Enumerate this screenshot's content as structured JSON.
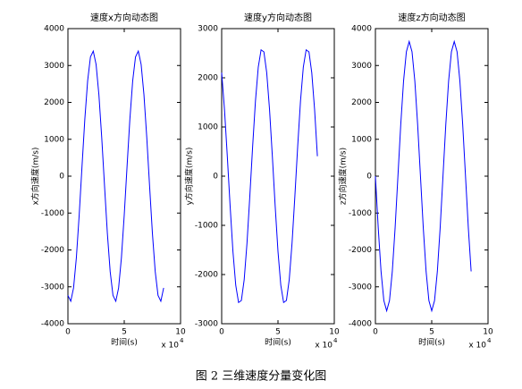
{
  "chart_data": [
    {
      "type": "line",
      "title": "速度x方向动态图",
      "xlabel": "时间(s)",
      "ylabel": "x方向速度(m/s)",
      "x_scale": {
        "base": "x 10",
        "exponent": "4"
      },
      "xlim": [
        0,
        10
      ],
      "xticks": [
        0,
        5,
        10
      ],
      "ylim": [
        -4000,
        4000
      ],
      "yticks": [
        -4000,
        -3000,
        -2000,
        -1000,
        0,
        1000,
        2000,
        3000,
        4000
      ],
      "x": [
        0,
        0.25,
        0.5,
        0.75,
        1,
        1.25,
        1.5,
        1.75,
        2,
        2.25,
        2.5,
        2.75,
        3,
        3.25,
        3.5,
        3.75,
        4,
        4.25,
        4.5,
        4.75,
        5,
        5.25,
        5.5,
        5.75,
        6,
        6.25,
        6.5,
        6.75,
        7,
        7.25,
        7.5,
        7.75,
        8,
        8.25,
        8.5
      ],
      "color": "#0000ff",
      "values": [
        -3233,
        -3390,
        -3029,
        -2207,
        -1051,
        265,
        1544,
        2584,
        3233,
        3390,
        3029,
        2207,
        1051,
        -265,
        -1544,
        -2584,
        -3233,
        -3390,
        -3029,
        -2207,
        -1051,
        265,
        1544,
        2584,
        3233,
        3390,
        3029,
        2207,
        1051,
        -265,
        -1544,
        -2584,
        -3233,
        -3390,
        -3029
      ]
    },
    {
      "type": "line",
      "title": "速度y方向动态图",
      "xlabel": "时间(s)",
      "ylabel": "y方向速度(m/s)",
      "x_scale": {
        "base": "x 10",
        "exponent": "4"
      },
      "xlim": [
        0,
        10
      ],
      "xticks": [
        0,
        5,
        10
      ],
      "ylim": [
        -3000,
        3000
      ],
      "yticks": [
        -3000,
        -2000,
        -1000,
        0,
        1000,
        2000,
        3000
      ],
      "x": [
        0,
        0.25,
        0.5,
        0.75,
        1,
        1.25,
        1.5,
        1.75,
        2,
        2.25,
        2.5,
        2.75,
        3,
        3.25,
        3.5,
        3.75,
        4,
        4.25,
        4.5,
        4.75,
        5,
        5.25,
        5.5,
        5.75,
        6,
        6.25,
        6.5,
        6.75,
        7,
        7.25,
        7.5,
        7.75,
        8,
        8.25,
        8.5
      ],
      "color": "#0000ff",
      "values": [
        2103,
        1357,
        406,
        -606,
        -1529,
        -2218,
        -2569,
        -2527,
        -2103,
        -1357,
        -406,
        606,
        1529,
        2218,
        2569,
        2527,
        2103,
        1357,
        406,
        -606,
        -1529,
        -2218,
        -2569,
        -2527,
        -2103,
        -1357,
        -406,
        606,
        1529,
        2218,
        2569,
        2527,
        2103,
        1357,
        406
      ]
    },
    {
      "type": "line",
      "title": "速度z方向动态图",
      "xlabel": "时间(s)",
      "ylabel": "z方向速度(m/s)",
      "x_scale": {
        "base": "x 10",
        "exponent": "4"
      },
      "xlim": [
        0,
        10
      ],
      "xticks": [
        0,
        5,
        10
      ],
      "ylim": [
        -4000,
        4000
      ],
      "yticks": [
        -4000,
        -3000,
        -2000,
        -1000,
        0,
        1000,
        2000,
        3000,
        4000
      ],
      "x": [
        0,
        0.25,
        0.5,
        0.75,
        1,
        1.25,
        1.5,
        1.75,
        2,
        2.25,
        2.5,
        2.75,
        3,
        3.25,
        3.5,
        3.75,
        4,
        4.25,
        4.5,
        4.75,
        5,
        5.25,
        5.5,
        5.75,
        6,
        6.25,
        6.5,
        6.75,
        7,
        7.25,
        7.5,
        7.75,
        8,
        8.25,
        8.5
      ],
      "color": "#0000ff",
      "values": [
        0,
        -1398,
        -2581,
        -3373,
        -3650,
        -3373,
        -2581,
        -1398,
        0,
        1398,
        2581,
        3373,
        3650,
        3373,
        2581,
        1398,
        0,
        -1398,
        -2581,
        -3373,
        -3650,
        -3373,
        -2581,
        -1398,
        0,
        1398,
        2581,
        3373,
        3650,
        3373,
        2581,
        1398,
        0,
        -1398,
        -2581
      ]
    }
  ],
  "caption": "图 2  三维速度分量变化图"
}
